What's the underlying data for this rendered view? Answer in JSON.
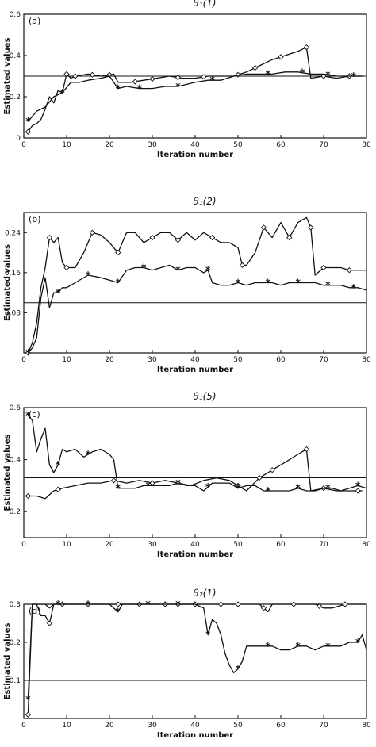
{
  "chart_data": [
    {
      "type": "line",
      "tag": "(a)",
      "title": "θ₁(1)",
      "xlabel": "Iteration number",
      "ylabel": "Estimated values",
      "xlim": [
        0,
        80
      ],
      "ylim": [
        0,
        0.6
      ],
      "xticks": [
        "0",
        "10",
        "20",
        "30",
        "40",
        "50",
        "60",
        "70",
        "80"
      ],
      "yticks": [
        {
          "v": 0,
          "t": "0"
        },
        {
          "v": 0.2,
          "t": "0.2"
        },
        {
          "v": 0.4,
          "t": "0.4"
        },
        {
          "v": 0.6,
          "t": "0.6"
        }
      ],
      "reference": 0.3,
      "series": [
        {
          "marker": "diamond",
          "x": [
            1,
            2,
            3,
            4,
            5,
            6,
            7,
            8,
            9,
            10,
            11,
            12,
            15,
            18,
            21,
            22,
            25,
            28,
            31,
            34,
            37,
            40,
            43,
            46,
            49,
            52,
            55,
            58,
            61,
            64,
            66,
            67,
            70,
            73,
            76,
            79
          ],
          "y": [
            0.03,
            0.06,
            0.07,
            0.09,
            0.14,
            0.2,
            0.17,
            0.23,
            0.22,
            0.31,
            0.29,
            0.3,
            0.31,
            0.3,
            0.31,
            0.27,
            0.27,
            0.28,
            0.29,
            0.3,
            0.29,
            0.29,
            0.3,
            0.3,
            0.3,
            0.32,
            0.35,
            0.38,
            0.4,
            0.42,
            0.44,
            0.29,
            0.3,
            0.29,
            0.3,
            0.3
          ],
          "markers_at": [
            1,
            10,
            12,
            16,
            20,
            26,
            30,
            36,
            42,
            50,
            54,
            60,
            66,
            70,
            76
          ]
        },
        {
          "marker": "star",
          "x": [
            1,
            3,
            5,
            7,
            9,
            11,
            13,
            15,
            18,
            20,
            22,
            24,
            27,
            30,
            33,
            36,
            38,
            40,
            43,
            46,
            49,
            52,
            55,
            58,
            61,
            64,
            67,
            70,
            73,
            76,
            79
          ],
          "y": [
            0.08,
            0.13,
            0.15,
            0.2,
            0.22,
            0.27,
            0.27,
            0.28,
            0.29,
            0.3,
            0.24,
            0.25,
            0.24,
            0.24,
            0.25,
            0.25,
            0.26,
            0.27,
            0.28,
            0.28,
            0.3,
            0.31,
            0.31,
            0.31,
            0.32,
            0.32,
            0.31,
            0.31,
            0.3,
            0.3,
            0.3
          ],
          "markers_at": [
            1,
            9,
            22,
            27,
            36,
            44,
            57,
            65,
            71,
            77
          ]
        }
      ]
    },
    {
      "type": "line",
      "tag": "(b)",
      "title": "θ₁(2)",
      "xlabel": "Iteration number",
      "ylabel": "Estimated values",
      "xlim": [
        0,
        80
      ],
      "ylim": [
        0,
        0.28
      ],
      "xticks": [
        "0",
        "10",
        "20",
        "30",
        "40",
        "50",
        "60",
        "70",
        "80"
      ],
      "yticks": [
        {
          "v": 0.08,
          "t": "0.08"
        },
        {
          "v": 0.16,
          "t": "0.16"
        },
        {
          "v": 0.24,
          "t": "0.24"
        }
      ],
      "reference": 0.1,
      "series": [
        {
          "marker": "diamond",
          "x": [
            1,
            2,
            3,
            4,
            5,
            6,
            7,
            8,
            9,
            10,
            12,
            14,
            16,
            18,
            20,
            21,
            22,
            24,
            26,
            28,
            30,
            32,
            34,
            36,
            38,
            40,
            42,
            44,
            46,
            48,
            50,
            51,
            52,
            54,
            56,
            58,
            60,
            62,
            64,
            66,
            67,
            68,
            70,
            72,
            74,
            76,
            78,
            80
          ],
          "y": [
            0,
            0.02,
            0.06,
            0.13,
            0.17,
            0.23,
            0.22,
            0.23,
            0.18,
            0.17,
            0.17,
            0.2,
            0.24,
            0.235,
            0.22,
            0.21,
            0.2,
            0.24,
            0.24,
            0.22,
            0.23,
            0.24,
            0.24,
            0.225,
            0.24,
            0.225,
            0.24,
            0.23,
            0.22,
            0.22,
            0.21,
            0.175,
            0.175,
            0.2,
            0.25,
            0.23,
            0.26,
            0.23,
            0.26,
            0.27,
            0.25,
            0.155,
            0.17,
            0.17,
            0.17,
            0.165,
            0.165,
            0.165
          ],
          "markers_at": [
            1,
            6,
            10,
            16,
            22,
            30,
            36,
            44,
            51,
            56,
            62,
            67,
            70,
            76
          ]
        },
        {
          "marker": "star",
          "x": [
            1,
            2,
            3,
            4,
            5,
            6,
            7,
            8,
            9,
            10,
            12,
            15,
            18,
            20,
            22,
            24,
            26,
            28,
            30,
            32,
            34,
            36,
            38,
            40,
            42,
            43,
            44,
            46,
            48,
            50,
            52,
            54,
            56,
            58,
            60,
            62,
            64,
            66,
            68,
            70,
            72,
            74,
            76,
            78,
            80
          ],
          "y": [
            0,
            0.01,
            0.03,
            0.11,
            0.15,
            0.09,
            0.12,
            0.12,
            0.13,
            0.13,
            0.14,
            0.155,
            0.15,
            0.145,
            0.14,
            0.165,
            0.17,
            0.17,
            0.165,
            0.17,
            0.175,
            0.165,
            0.17,
            0.17,
            0.16,
            0.165,
            0.14,
            0.135,
            0.135,
            0.14,
            0.135,
            0.14,
            0.14,
            0.14,
            0.135,
            0.14,
            0.14,
            0.14,
            0.14,
            0.135,
            0.135,
            0.135,
            0.13,
            0.13,
            0.125
          ],
          "markers_at": [
            1,
            8,
            15,
            22,
            28,
            36,
            43,
            50,
            57,
            64,
            71,
            77
          ]
        }
      ]
    },
    {
      "type": "line",
      "tag": "(c)",
      "title": "θ₁(5)",
      "xlabel": "Iteration number",
      "ylabel": "Estimated values",
      "xlim": [
        0,
        80
      ],
      "ylim": [
        0.1,
        0.6
      ],
      "xticks": [
        "0",
        "10",
        "20",
        "30",
        "40",
        "50",
        "60",
        "70",
        "80"
      ],
      "yticks": [
        {
          "v": 0.2,
          "t": "0.2"
        },
        {
          "v": 0.4,
          "t": "0.4"
        },
        {
          "v": 0.6,
          "t": "0.6"
        }
      ],
      "reference": 0.33,
      "series": [
        {
          "marker": "diamond",
          "x": [
            1,
            3,
            5,
            7,
            9,
            12,
            15,
            18,
            21,
            24,
            27,
            30,
            33,
            36,
            39,
            42,
            45,
            48,
            50,
            52,
            55,
            58,
            61,
            64,
            66,
            67,
            70,
            73,
            76,
            79
          ],
          "y": [
            0.26,
            0.26,
            0.25,
            0.28,
            0.29,
            0.3,
            0.31,
            0.31,
            0.32,
            0.31,
            0.32,
            0.31,
            0.32,
            0.31,
            0.3,
            0.32,
            0.33,
            0.32,
            0.3,
            0.28,
            0.33,
            0.36,
            0.39,
            0.42,
            0.44,
            0.28,
            0.29,
            0.28,
            0.28,
            0.28
          ],
          "markers_at": [
            1,
            8,
            21,
            30,
            36,
            50,
            55,
            58,
            66,
            70,
            78
          ]
        },
        {
          "marker": "star",
          "x": [
            1,
            2,
            3,
            4,
            5,
            6,
            7,
            8,
            9,
            10,
            12,
            14,
            16,
            18,
            20,
            21,
            22,
            24,
            26,
            28,
            30,
            32,
            34,
            36,
            38,
            40,
            42,
            44,
            46,
            48,
            50,
            52,
            54,
            56,
            58,
            60,
            62,
            64,
            66,
            68,
            70,
            72,
            74,
            76,
            78,
            80
          ],
          "y": [
            0.57,
            0.55,
            0.43,
            0.48,
            0.52,
            0.38,
            0.35,
            0.38,
            0.44,
            0.43,
            0.44,
            0.41,
            0.43,
            0.44,
            0.42,
            0.4,
            0.29,
            0.29,
            0.29,
            0.3,
            0.3,
            0.3,
            0.3,
            0.31,
            0.3,
            0.3,
            0.28,
            0.31,
            0.31,
            0.31,
            0.29,
            0.3,
            0.3,
            0.28,
            0.28,
            0.28,
            0.28,
            0.29,
            0.28,
            0.28,
            0.29,
            0.29,
            0.28,
            0.29,
            0.3,
            0.29
          ],
          "markers_at": [
            1,
            8,
            15,
            22,
            29,
            36,
            43,
            50,
            57,
            64,
            71,
            78
          ]
        }
      ]
    },
    {
      "type": "line",
      "tag": "(d)",
      "title": "θ₂(1)",
      "xlabel": "Iteration number",
      "ylabel": "Estimated values",
      "xlim": [
        0,
        80
      ],
      "ylim": [
        0,
        0.3
      ],
      "xticks": [
        "0",
        "10",
        "20",
        "30",
        "40",
        "50",
        "60",
        "70",
        "80"
      ],
      "yticks": [
        {
          "v": 0.1,
          "t": "0.1"
        },
        {
          "v": 0.2,
          "t": "0.2"
        },
        {
          "v": 0.3,
          "t": "0.3"
        }
      ],
      "reference": 0.1,
      "series": [
        {
          "marker": "diamond",
          "x": [
            1,
            2,
            3,
            4,
            5,
            6,
            7,
            8,
            10,
            15,
            20,
            25,
            30,
            35,
            40,
            45,
            50,
            55,
            56,
            57,
            58,
            60,
            65,
            68,
            70,
            72,
            75,
            80
          ],
          "y": [
            0.01,
            0.3,
            0.3,
            0.27,
            0.27,
            0.25,
            0.3,
            0.3,
            0.3,
            0.3,
            0.3,
            0.3,
            0.3,
            0.3,
            0.3,
            0.3,
            0.3,
            0.3,
            0.29,
            0.28,
            0.3,
            0.3,
            0.3,
            0.3,
            0.29,
            0.29,
            0.3,
            0.3
          ],
          "markers_at": [
            1,
            6,
            9,
            15,
            22,
            27,
            33,
            36,
            40,
            46,
            50,
            56,
            63,
            69,
            75
          ]
        },
        {
          "marker": "star",
          "x": [
            1,
            2,
            3,
            4,
            5,
            6,
            7,
            8,
            10,
            15,
            20,
            22,
            23,
            25,
            30,
            35,
            40,
            42,
            43,
            44,
            45,
            46,
            47,
            48,
            49,
            50,
            51,
            52,
            54,
            56,
            58,
            60,
            62,
            64,
            66,
            68,
            70,
            72,
            74,
            76,
            78,
            79,
            80
          ],
          "y": [
            0.05,
            0.3,
            0.3,
            0.3,
            0.3,
            0.29,
            0.3,
            0.3,
            0.3,
            0.3,
            0.3,
            0.28,
            0.3,
            0.3,
            0.3,
            0.3,
            0.3,
            0.29,
            0.22,
            0.26,
            0.25,
            0.22,
            0.17,
            0.14,
            0.12,
            0.13,
            0.15,
            0.19,
            0.19,
            0.19,
            0.19,
            0.18,
            0.18,
            0.19,
            0.19,
            0.18,
            0.19,
            0.19,
            0.19,
            0.2,
            0.2,
            0.22,
            0.18
          ],
          "markers_at": [
            1,
            8,
            15,
            22,
            29,
            36,
            43,
            50,
            57,
            64,
            71,
            78
          ]
        }
      ]
    }
  ]
}
